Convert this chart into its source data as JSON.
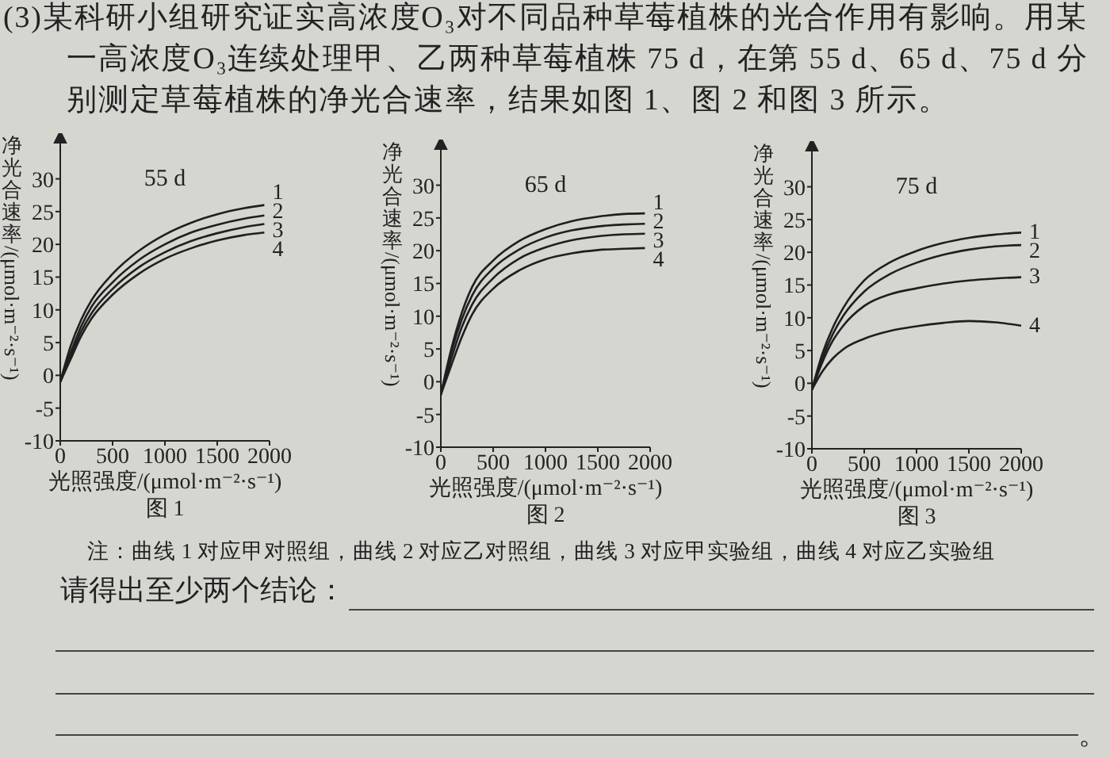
{
  "chart_data": [
    {
      "type": "other",
      "annotations": [
        "(3)某科研小组研究证实高浓度O₃对不同品种草莓植株的光合作用有影响。用某一高浓度O₃连续处理甲、乙两种草莓植株 75 d，在第 55 d、65 d、75 d 分别测定草莓植株的净光合速率，结果如图 1、图 2 和图 3 所示。"
      ]
    },
    {
      "type": "line",
      "title": "55 d",
      "xlabel": "光照强度/(μmol·m⁻²·s⁻¹)",
      "ylabel": "净光合速率/(μmol·m⁻²·s⁻¹)",
      "annotations": [
        "图 1"
      ],
      "x": [
        0,
        100,
        200,
        300,
        500,
        750,
        1000,
        1250,
        1500,
        1750,
        1950
      ],
      "series": [
        {
          "name": "1",
          "color": "#1f1f1f",
          "values": [
            -1,
            4.5,
            8.5,
            11.5,
            15.5,
            19,
            21.5,
            23.3,
            24.6,
            25.5,
            26
          ]
        },
        {
          "name": "2",
          "color": "#1f1f1f",
          "values": [
            -1,
            3.5,
            7.5,
            10.5,
            14.2,
            17.6,
            20,
            21.8,
            23,
            23.9,
            24.4
          ]
        },
        {
          "name": "3",
          "color": "#1f1f1f",
          "values": [
            -1,
            3,
            6.7,
            9.5,
            13.2,
            16.5,
            18.8,
            20.5,
            21.7,
            22.6,
            23.1
          ]
        },
        {
          "name": "4",
          "color": "#1f1f1f",
          "values": [
            -1,
            2.5,
            6,
            8.7,
            12.3,
            15.5,
            17.8,
            19.4,
            20.6,
            21.4,
            21.8
          ]
        }
      ],
      "xlim": [
        0,
        2000
      ],
      "ylim": [
        -10,
        36
      ],
      "xticks": [
        0,
        500,
        1000,
        1500,
        2000
      ],
      "yticks": [
        -10,
        -5,
        0,
        5,
        10,
        15,
        20,
        25,
        30
      ]
    },
    {
      "type": "line",
      "title": "65 d",
      "xlabel": "光照强度/(μmol·m⁻²·s⁻¹)",
      "ylabel": "净光合速率/(μmol·m⁻²·s⁻¹)",
      "annotations": [
        "图 2"
      ],
      "x": [
        0,
        100,
        200,
        300,
        500,
        750,
        1000,
        1250,
        1500,
        1750,
        1950
      ],
      "series": [
        {
          "name": "1",
          "color": "#1f1f1f",
          "values": [
            -2,
            5,
            10.5,
            14.5,
            18.5,
            21.5,
            23.3,
            24.5,
            25.2,
            25.6,
            25.7
          ]
        },
        {
          "name": "2",
          "color": "#1f1f1f",
          "values": [
            -2,
            4.5,
            9.5,
            13.2,
            17.3,
            20.2,
            22,
            23.1,
            23.7,
            24,
            24.1
          ]
        },
        {
          "name": "3",
          "color": "#1f1f1f",
          "values": [
            -2,
            3.5,
            8.3,
            11.8,
            15.8,
            18.8,
            20.5,
            21.6,
            22.2,
            22.5,
            22.6
          ]
        },
        {
          "name": "4",
          "color": "#1f1f1f",
          "values": [
            -2,
            2.5,
            6.8,
            10.3,
            14.2,
            17,
            18.7,
            19.6,
            20.1,
            20.3,
            20.4
          ]
        }
      ],
      "xlim": [
        0,
        2000
      ],
      "ylim": [
        -10,
        36
      ],
      "xticks": [
        0,
        500,
        1000,
        1500,
        2000
      ],
      "yticks": [
        -10,
        -5,
        0,
        5,
        10,
        15,
        20,
        25,
        30
      ]
    },
    {
      "type": "line",
      "title": "75 d",
      "xlabel": "光照强度/(μmol·m⁻²·s⁻¹)",
      "ylabel": "净光合速率/(μmol·m⁻²·s⁻¹)",
      "annotations": [
        "图 3"
      ],
      "x": [
        0,
        100,
        200,
        300,
        500,
        750,
        1000,
        1250,
        1500,
        1750,
        2000
      ],
      "series": [
        {
          "name": "1",
          "color": "#1f1f1f",
          "values": [
            -1,
            4.5,
            8.5,
            11.5,
            15.7,
            18.5,
            20.2,
            21.4,
            22.2,
            22.7,
            23
          ]
        },
        {
          "name": "2",
          "color": "#1f1f1f",
          "values": [
            -1,
            3.8,
            7.5,
            10.3,
            14,
            16.7,
            18.4,
            19.6,
            20.4,
            20.9,
            21.1
          ]
        },
        {
          "name": "3",
          "color": "#1f1f1f",
          "values": [
            -1,
            3.2,
            6.5,
            8.8,
            11.8,
            13.6,
            14.5,
            15.2,
            15.7,
            16,
            16.2
          ]
        },
        {
          "name": "4",
          "color": "#1f1f1f",
          "values": [
            -1,
            1.8,
            3.8,
            5.2,
            6.8,
            8,
            8.7,
            9.2,
            9.5,
            9.3,
            8.8
          ]
        }
      ],
      "xlim": [
        0,
        2000
      ],
      "ylim": [
        -10,
        36
      ],
      "xticks": [
        0,
        500,
        1000,
        1500,
        2000
      ],
      "yticks": [
        -10,
        -5,
        0,
        5,
        10,
        15,
        20,
        25,
        30
      ]
    },
    {
      "type": "other",
      "annotations": [
        "注：曲线 1 对应甲对照组，曲线 2 对应乙对照组，曲线 3 对应甲实验组，曲线 4 对应乙实验组",
        "请得出至少两个结论：",
        "。"
      ]
    }
  ]
}
